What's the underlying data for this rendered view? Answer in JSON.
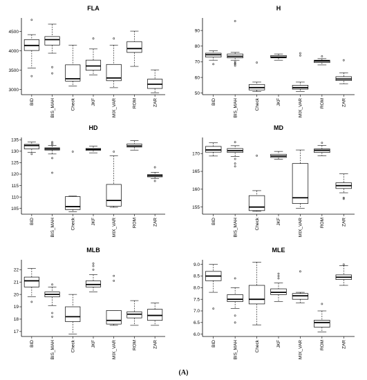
{
  "caption": "(A)",
  "chart_data": [
    {
      "type": "boxplot",
      "title": "FLA",
      "categories": [
        "BID",
        "BIS_MAH",
        "Check",
        "JKF",
        "MIX_VAR",
        "ROM",
        "ZAR"
      ],
      "ylim": [
        2870,
        4850
      ],
      "yticks": [
        3000,
        3500,
        4000,
        4500
      ],
      "boxes": [
        {
          "min": 3560,
          "q1": 4010,
          "median": 4140,
          "q3": 4290,
          "max": 4420,
          "outliers": [
            4800,
            3350
          ]
        },
        {
          "min": 3940,
          "q1": 4150,
          "median": 4290,
          "q3": 4370,
          "max": 4690,
          "outliers": [
            3580,
            3420
          ]
        },
        {
          "min": 3090,
          "q1": 3220,
          "median": 3280,
          "q3": 3640,
          "max": 4150,
          "outliers": []
        },
        {
          "min": 3380,
          "q1": 3500,
          "median": 3610,
          "q3": 3760,
          "max": 4050,
          "outliers": [
            4320
          ]
        },
        {
          "min": 3050,
          "q1": 3230,
          "median": 3300,
          "q3": 3650,
          "max": 4150,
          "outliers": [
            4320
          ]
        },
        {
          "min": 3600,
          "q1": 3960,
          "median": 4060,
          "q3": 4240,
          "max": 4510,
          "outliers": []
        },
        {
          "min": 2920,
          "q1": 3030,
          "median": 3140,
          "q3": 3270,
          "max": 3510,
          "outliers": []
        }
      ]
    },
    {
      "type": "boxplot",
      "title": "H",
      "categories": [
        "BID",
        "BIS_MAH",
        "Check",
        "JKF",
        "MIX_VAR",
        "ROM",
        "ZAR"
      ],
      "ylim": [
        49,
        98
      ],
      "yticks": [
        50,
        60,
        70,
        80,
        90
      ],
      "boxes": [
        {
          "min": 71,
          "q1": 73,
          "median": 74.5,
          "q3": 75.5,
          "max": 77,
          "outliers": [
            68.5
          ]
        },
        {
          "min": 71,
          "q1": 72.5,
          "median": 73.5,
          "q3": 75,
          "max": 76,
          "outliers": [
            96,
            70,
            69,
            68.5,
            67.5
          ]
        },
        {
          "min": 51,
          "q1": 52,
          "median": 53.5,
          "q3": 55.5,
          "max": 57,
          "outliers": [
            69.5
          ]
        },
        {
          "min": 71,
          "q1": 72.5,
          "median": 73,
          "q3": 74,
          "max": 75,
          "outliers": []
        },
        {
          "min": 51,
          "q1": 52.5,
          "median": 53.5,
          "q3": 55,
          "max": 57,
          "outliers": [
            75.5,
            74
          ]
        },
        {
          "min": 68,
          "q1": 69.5,
          "median": 70.5,
          "q3": 71,
          "max": 72,
          "outliers": [
            73.5
          ]
        },
        {
          "min": 56,
          "q1": 58,
          "median": 59,
          "q3": 60.5,
          "max": 63,
          "outliers": [
            71
          ]
        }
      ]
    },
    {
      "type": "boxplot",
      "title": "HD",
      "categories": [
        "BID",
        "BIS_MAH",
        "Check",
        "JKF",
        "MIX_VAR",
        "ROM",
        "ZAR"
      ],
      "ylim": [
        102.5,
        136
      ],
      "yticks": [
        105,
        110,
        115,
        120,
        125,
        130,
        135
      ],
      "boxes": [
        {
          "min": 129.5,
          "q1": 131,
          "median": 132.5,
          "q3": 133,
          "max": 134,
          "outliers": [
            128.8
          ]
        },
        {
          "min": 128.8,
          "q1": 130.5,
          "median": 131,
          "q3": 131.5,
          "max": 132.5,
          "outliers": [
            134,
            133.4,
            132.8,
            127,
            120.6
          ]
        },
        {
          "min": 103.5,
          "q1": 104.5,
          "median": 105.8,
          "q3": 110.2,
          "max": 110.4,
          "outliers": [
            129.8
          ]
        },
        {
          "min": 129.3,
          "q1": 130.4,
          "median": 130.8,
          "q3": 131.2,
          "max": 132.2,
          "outliers": []
        },
        {
          "min": 105.5,
          "q1": 106,
          "median": 108.5,
          "q3": 115.5,
          "max": 128,
          "outliers": [
            129.8
          ]
        },
        {
          "min": 130.5,
          "q1": 131.8,
          "median": 132.3,
          "q3": 133.2,
          "max": 134.6,
          "outliers": []
        },
        {
          "min": 118,
          "q1": 118.8,
          "median": 119.3,
          "q3": 119.8,
          "max": 120.8,
          "outliers": [
            123,
            117
          ]
        }
      ]
    },
    {
      "type": "boxplot",
      "title": "MD",
      "categories": [
        "BID",
        "BIS_MAH",
        "Check",
        "JKF",
        "MIX_VAR",
        "ROM",
        "ZAR"
      ],
      "ylim": [
        153,
        174.5
      ],
      "yticks": [
        155,
        160,
        165,
        170
      ],
      "boxes": [
        {
          "min": 169.3,
          "q1": 170.4,
          "median": 171,
          "q3": 172,
          "max": 173,
          "outliers": []
        },
        {
          "min": 169.2,
          "q1": 170.3,
          "median": 170.8,
          "q3": 171.4,
          "max": 172.2,
          "outliers": [
            173.2,
            168.5,
            167.2,
            166.4
          ]
        },
        {
          "min": 153.8,
          "q1": 154,
          "median": 155,
          "q3": 158.2,
          "max": 159.6,
          "outliers": [
            169.4
          ]
        },
        {
          "min": 168.4,
          "q1": 168.9,
          "median": 169.3,
          "q3": 169.8,
          "max": 170.6,
          "outliers": []
        },
        {
          "min": 154.6,
          "q1": 156,
          "median": 157.6,
          "q3": 167.2,
          "max": 171,
          "outliers": []
        },
        {
          "min": 169.4,
          "q1": 170.3,
          "median": 170.9,
          "q3": 171.3,
          "max": 172.3,
          "outliers": [
            173
          ]
        },
        {
          "min": 159,
          "q1": 160.2,
          "median": 161,
          "q3": 161.8,
          "max": 164.3,
          "outliers": [
            157.6,
            157.3
          ]
        }
      ]
    },
    {
      "type": "boxplot",
      "title": "MLB",
      "categories": [
        "BID",
        "BIS_MAH",
        "Check",
        "JKF",
        "MIX_VAR",
        "ROM",
        "ZAR"
      ],
      "ylim": [
        16.6,
        22.8
      ],
      "yticks": [
        17,
        18,
        19,
        20,
        21,
        22
      ],
      "boxes": [
        {
          "min": 19.8,
          "q1": 20.6,
          "median": 21.1,
          "q3": 21.4,
          "max": 22.1,
          "outliers": [
            19.4
          ]
        },
        {
          "min": 19.1,
          "q1": 19.8,
          "median": 20,
          "q3": 20.2,
          "max": 20.6,
          "outliers": [
            20.8,
            18.5,
            18.2
          ]
        },
        {
          "min": 16.8,
          "q1": 17.8,
          "median": 18.2,
          "q3": 19,
          "max": 20,
          "outliers": []
        },
        {
          "min": 20.2,
          "q1": 20.6,
          "median": 20.8,
          "q3": 21.1,
          "max": 21.6,
          "outliers": [
            22.5,
            22.3,
            22
          ]
        },
        {
          "min": 17.5,
          "q1": 17.6,
          "median": 17.9,
          "q3": 18.7,
          "max": 18.7,
          "outliers": [
            21.5,
            21.1
          ]
        },
        {
          "min": 17.5,
          "q1": 18.1,
          "median": 18.4,
          "q3": 18.6,
          "max": 19.5,
          "outliers": []
        },
        {
          "min": 17.5,
          "q1": 17.9,
          "median": 18.3,
          "q3": 18.8,
          "max": 19.3,
          "outliers": []
        }
      ]
    },
    {
      "type": "boxplot",
      "title": "MLE",
      "categories": [
        "BID",
        "BIS_MAH",
        "Check",
        "JKF",
        "MIX_VAR",
        "ROM",
        "ZAR"
      ],
      "ylim": [
        5.9,
        9.2
      ],
      "yticks": [
        6.0,
        6.5,
        7.0,
        7.5,
        8.0,
        8.5,
        9.0
      ],
      "boxes": [
        {
          "min": 7.8,
          "q1": 8.3,
          "median": 8.5,
          "q3": 8.7,
          "max": 9.0,
          "outliers": [
            7.1
          ]
        },
        {
          "min": 7.1,
          "q1": 7.4,
          "median": 7.5,
          "q3": 7.7,
          "max": 8.0,
          "outliers": [
            8.4,
            6.8,
            6.5
          ]
        },
        {
          "min": 6.4,
          "q1": 7.3,
          "median": 7.5,
          "q3": 8.1,
          "max": 9.1,
          "outliers": []
        },
        {
          "min": 7.4,
          "q1": 7.7,
          "median": 7.8,
          "q3": 7.95,
          "max": 8.2,
          "outliers": [
            8.6,
            8.5,
            8.4
          ]
        },
        {
          "min": 7.35,
          "q1": 7.5,
          "median": 7.65,
          "q3": 7.75,
          "max": 7.8,
          "outliers": [
            8.7
          ]
        },
        {
          "min": 6.1,
          "q1": 6.3,
          "median": 6.5,
          "q3": 6.6,
          "max": 7.0,
          "outliers": [
            7.3
          ]
        },
        {
          "min": 8.1,
          "q1": 8.35,
          "median": 8.45,
          "q3": 8.55,
          "max": 8.95,
          "outliers": [
            9.0
          ]
        }
      ]
    }
  ]
}
